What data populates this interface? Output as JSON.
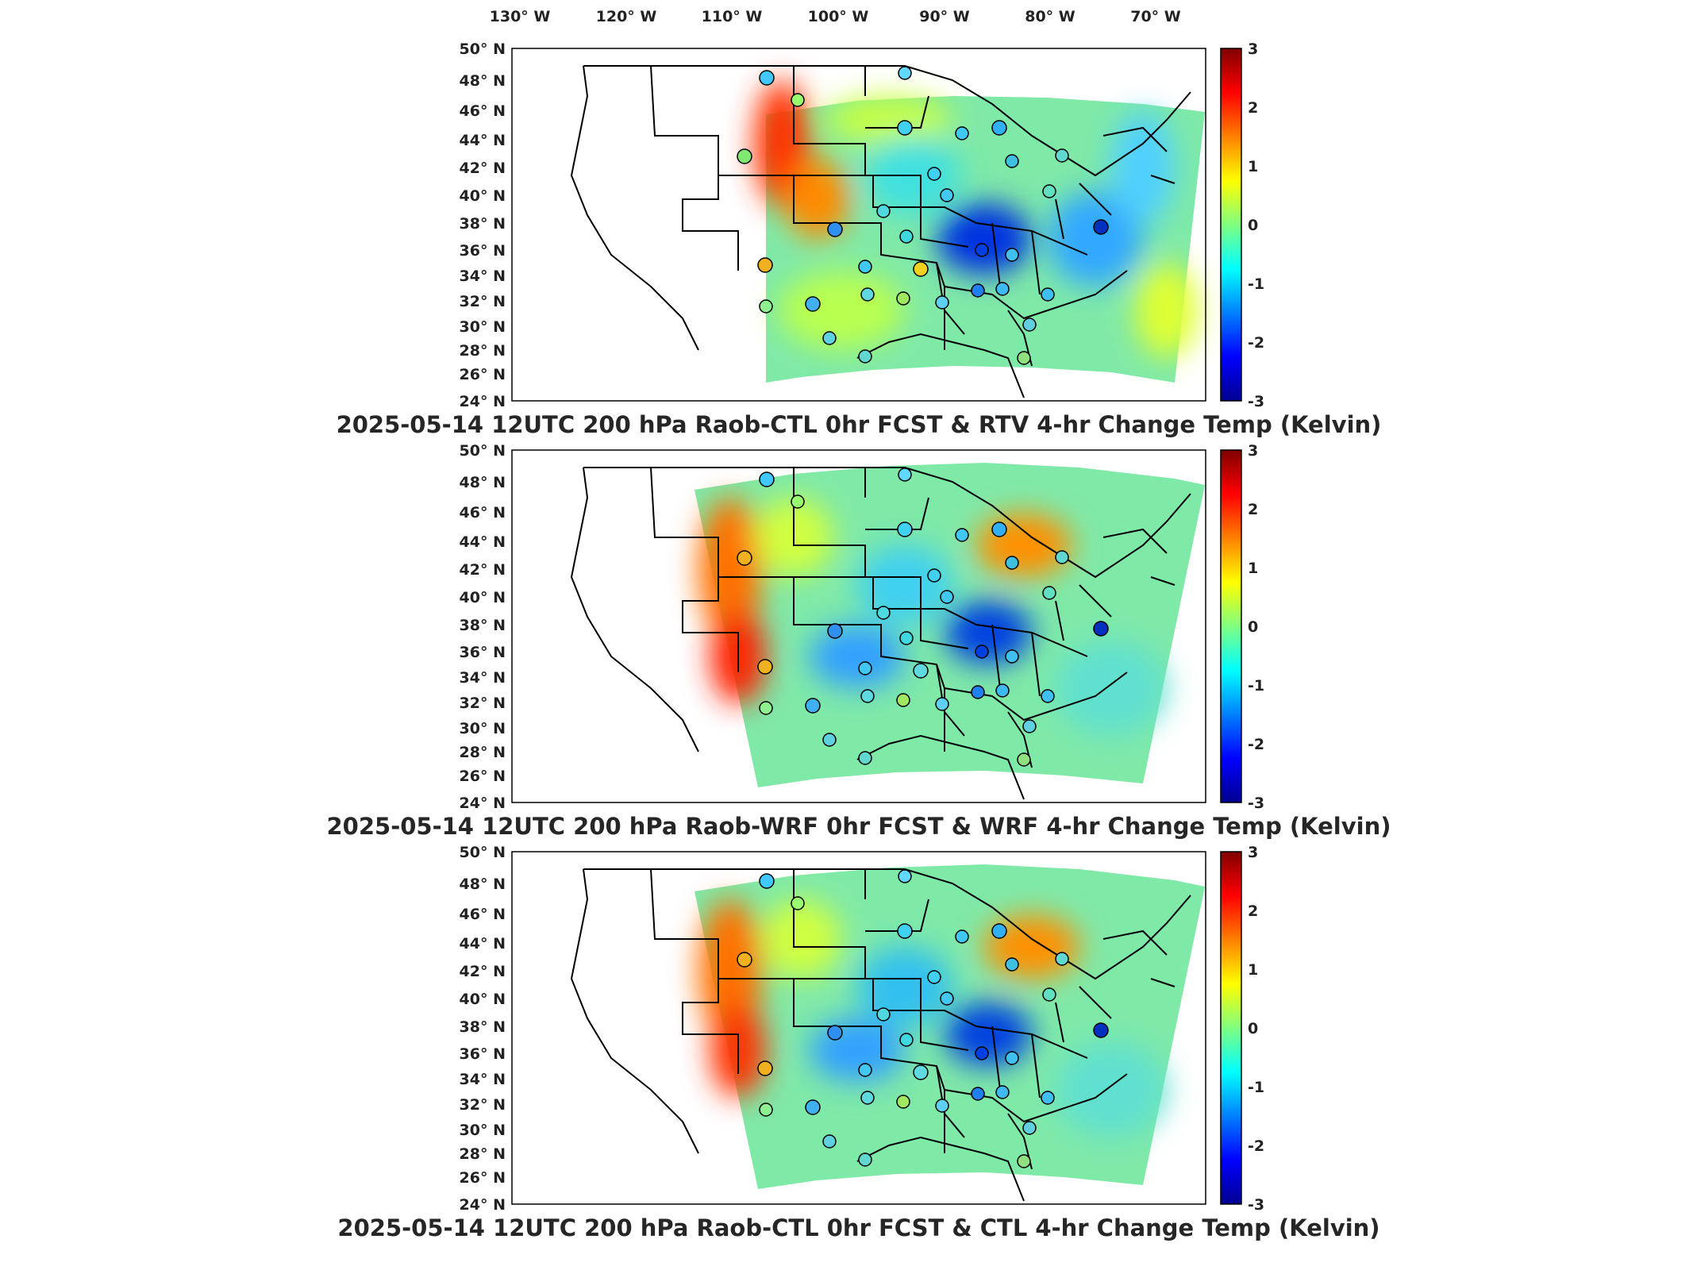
{
  "lon_labels": [
    "130° W",
    "120° W",
    "110° W",
    "100° W",
    "90° W",
    "80° W",
    "70° W"
  ],
  "lat_labels": [
    "50° N",
    "48° N",
    "46° N",
    "44° N",
    "42° N",
    "40° N",
    "38° N",
    "36° N",
    "34° N",
    "32° N",
    "30° N",
    "28° N",
    "26° N",
    "24° N"
  ],
  "colorbar_ticks": [
    "3",
    "2",
    "1",
    "0",
    "-1",
    "-2",
    "-3"
  ],
  "colormap": [
    "#00008f",
    "#0000ff",
    "#0080ff",
    "#00ffff",
    "#80ff80",
    "#ffff00",
    "#ff8000",
    "#ff0000",
    "#800000"
  ],
  "panels": [
    {
      "title": "2025-05-14 12UTC 200 hPa Raob-CTL 0hr FCST & RTV 4-hr Change Temp (Kelvin)"
    },
    {
      "title": "2025-05-14 12UTC 200 hPa Raob-WRF 0hr FCST & WRF 4-hr Change Temp (Kelvin)"
    },
    {
      "title": "2025-05-14 12UTC 200 hPa Raob-CTL 0hr FCST & CTL 4-hr Change Temp (Kelvin)"
    }
  ]
}
